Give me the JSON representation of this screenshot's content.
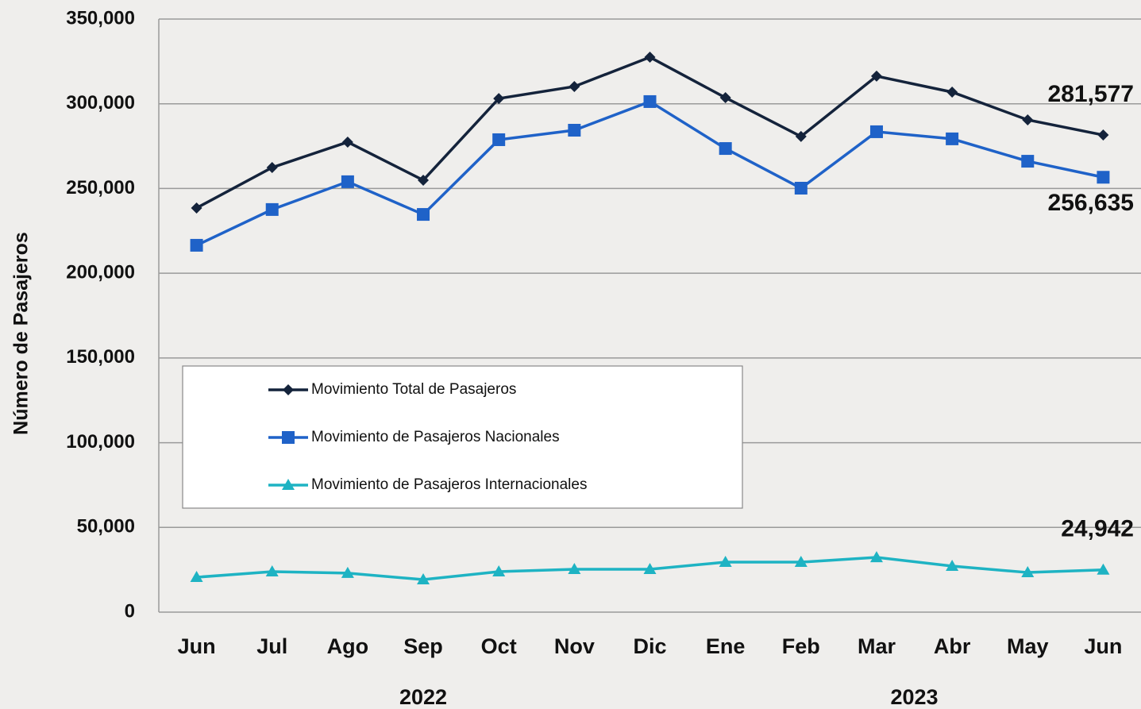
{
  "chart_data": {
    "type": "line",
    "y_label": "Número de Pasajeros",
    "categories": [
      "Jun",
      "Jul",
      "Ago",
      "Sep",
      "Oct",
      "Nov",
      "Dic",
      "Ene",
      "Feb",
      "Mar",
      "Abr",
      "May",
      "Jun"
    ],
    "x_groups": [
      {
        "label": "2022",
        "start": 0,
        "end": 6
      },
      {
        "label": "2023",
        "start": 7,
        "end": 12
      }
    ],
    "series": [
      {
        "name": "Movimiento Total de Pasajeros",
        "color": "#14233b",
        "marker": "diamond",
        "values": [
          238500,
          262400,
          277400,
          254900,
          303100,
          310200,
          327500,
          303600,
          280700,
          316300,
          306900,
          290500,
          281577
        ],
        "value_labels": [
          null,
          null,
          null,
          null,
          null,
          null,
          null,
          null,
          null,
          null,
          null,
          null,
          "281,577"
        ]
      },
      {
        "name": "Movimiento de Pasajeros Nacionales",
        "color": "#1f62c8",
        "marker": "square",
        "values": [
          216500,
          237600,
          254000,
          234700,
          278800,
          284400,
          301300,
          273600,
          250200,
          283500,
          279300,
          266100,
          256635
        ],
        "value_labels": [
          null,
          null,
          null,
          null,
          null,
          null,
          null,
          null,
          null,
          null,
          null,
          null,
          "256,635"
        ]
      },
      {
        "name": "Movimiento de Pasajeros Internacionales",
        "color": "#1eb3c3",
        "marker": "triangle",
        "values": [
          20600,
          23900,
          23000,
          19200,
          23900,
          25300,
          25300,
          29500,
          29500,
          32300,
          27200,
          23400,
          24942
        ],
        "value_labels": [
          null,
          null,
          null,
          null,
          null,
          null,
          null,
          null,
          null,
          null,
          null,
          null,
          "24,942"
        ]
      }
    ],
    "ylim": [
      0,
      350000
    ],
    "yticks": [
      0,
      {
        "value": 50000,
        "label": "50,000"
      },
      {
        "value": 100000,
        "label": "100,000"
      },
      {
        "value": 150000,
        "label": "150,000"
      },
      {
        "value": 200000,
        "label": "200,000"
      },
      {
        "value": 250000,
        "label": "250,000"
      },
      {
        "value": 300000,
        "label": "300,000"
      },
      {
        "value": 350000,
        "label": "350,000"
      }
    ],
    "grid": true
  }
}
